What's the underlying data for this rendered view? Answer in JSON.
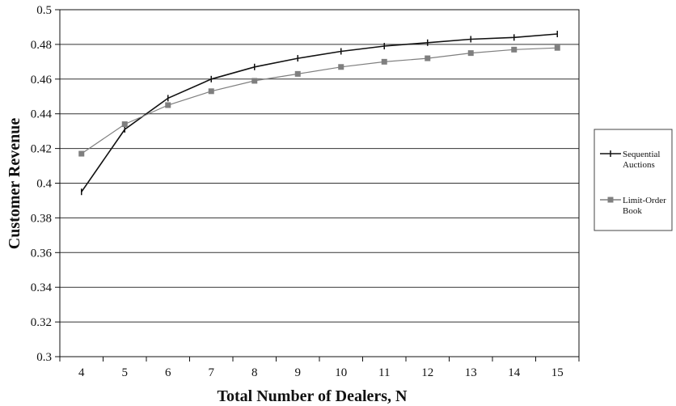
{
  "chart_data": {
    "type": "line",
    "title": "",
    "xlabel": "Total Number of Dealers, N",
    "ylabel": "Customer Revenue",
    "x": [
      4,
      5,
      6,
      7,
      8,
      9,
      10,
      11,
      12,
      13,
      14,
      15
    ],
    "xlim": [
      3.5,
      15.5
    ],
    "ylim": [
      0.3,
      0.5
    ],
    "yticks": [
      "0.3",
      "0.32",
      "0.34",
      "0.36",
      "0.38",
      "0.4",
      "0.42",
      "0.44",
      "0.46",
      "0.48",
      "0.5"
    ],
    "xticks": [
      "4",
      "5",
      "6",
      "7",
      "8",
      "9",
      "10",
      "11",
      "12",
      "13",
      "14",
      "15"
    ],
    "grid": "horizontal",
    "legend_position": "right",
    "series": [
      {
        "name_lines": [
          "Sequential",
          "Auctions"
        ],
        "marker": "plus",
        "color": "#111111",
        "values": [
          0.395,
          0.431,
          0.449,
          0.46,
          0.467,
          0.472,
          0.476,
          0.479,
          0.481,
          0.483,
          0.484,
          0.486
        ]
      },
      {
        "name_lines": [
          "Limit-Order",
          "Book"
        ],
        "marker": "square",
        "color": "#7f7f7f",
        "values": [
          0.417,
          0.434,
          0.445,
          0.453,
          0.459,
          0.463,
          0.467,
          0.47,
          0.472,
          0.475,
          0.477,
          0.478
        ]
      }
    ]
  }
}
